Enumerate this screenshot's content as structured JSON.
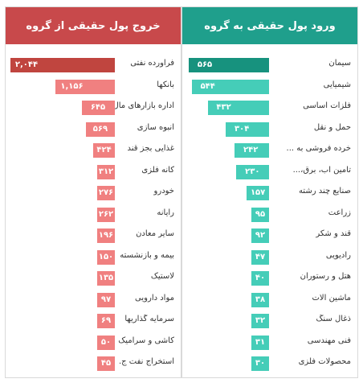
{
  "left_panel": {
    "title": "خروج پول حقیقی از گروه",
    "bar_color": "#f08080",
    "top_bar_color": "#c0453f"
  },
  "right_panel": {
    "title": "ورود پول حقیقی به گروه",
    "bar_color": "#45cdb8",
    "top_bar_color": "#17927e"
  },
  "chart_data": [
    {
      "type": "bar",
      "title": "خروج پول حقیقی از گروه",
      "orientation": "horizontal",
      "categories": [
        "فراورده نفتی",
        "بانکها",
        "اداره بازارهای مال",
        "انبوه سازی",
        "غذایی بجز قند",
        "کانه فلزی",
        "خودرو",
        "رایانه",
        "سایر معادن",
        "بیمه و بازنشسته",
        "لاستیک",
        "مواد دارویی",
        "سرمایه گذاریها",
        "کاشی و سرامیک",
        "استخراج نفت ج."
      ],
      "values": [
        2044,
        1156,
        645,
        569,
        424,
        312,
        276,
        262,
        196,
        150,
        135,
        97,
        69,
        50,
        45
      ],
      "labels": [
        "۲,۰۴۴",
        "۱,۱۵۶",
        "۶۴۵",
        "۵۶۹",
        "۴۲۴",
        "۳۱۲",
        "۲۷۶",
        "۲۶۲",
        "۱۹۶",
        "۱۵۰",
        "۱۳۵",
        "۹۷",
        "۶۹",
        "۵۰",
        "۴۵"
      ]
    },
    {
      "type": "bar",
      "title": "ورود پول حقیقی به گروه",
      "orientation": "horizontal",
      "categories": [
        "سیمان",
        "شیمیایی",
        "فلزات اساسی",
        "حمل و نقل",
        "خرده فروشی به ...",
        "تامین آب، برق،...",
        "صنایع چند رشته",
        "زراعت",
        "قند و شکر",
        "رادیویی",
        "هتل و رستوران",
        "ماشین آلات",
        "ذغال سنگ",
        "فنی مهندسی",
        "محصولات فلزی"
      ],
      "values": [
        565,
        544,
        432,
        304,
        242,
        230,
        157,
        95,
        92,
        47,
        40,
        38,
        32,
        31,
        30
      ],
      "labels": [
        "۵۶۵",
        "۵۴۴",
        "۴۳۲",
        "۳۰۴",
        "۲۴۲",
        "۲۳۰",
        "۱۵۷",
        "۹۵",
        "۹۲",
        "۴۷",
        "۴۰",
        "۳۸",
        "۳۲",
        "۳۱",
        "۳۰"
      ]
    }
  ]
}
